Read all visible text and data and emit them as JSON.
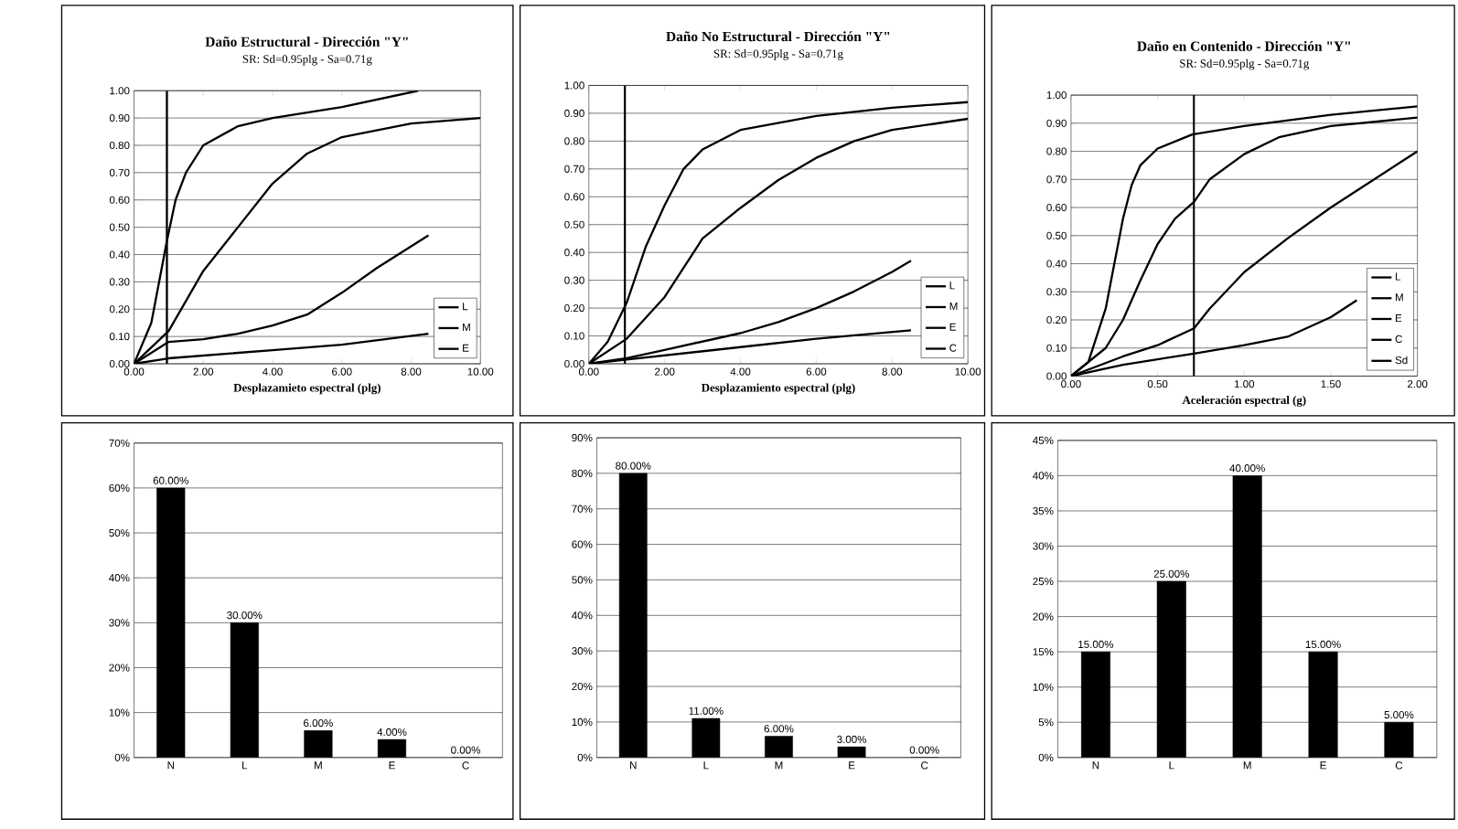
{
  "chart_data": [
    {
      "type": "line",
      "title": "Daño Estructural - Dirección \"Y\"",
      "subtitle": "SR: Sd=0.95plg - Sa=0.71g",
      "xlabel": "Desplazamieto espectral (plg)",
      "xlim": [
        0,
        10
      ],
      "ylim": [
        0,
        1
      ],
      "xticks": [
        {
          "value": 0,
          "label": "0.00"
        },
        {
          "value": 2,
          "label": "2.00"
        },
        {
          "value": 4,
          "label": "4.00"
        },
        {
          "value": 6,
          "label": "6.00"
        },
        {
          "value": 8,
          "label": "8.00"
        },
        {
          "value": 10,
          "label": "10.00"
        }
      ],
      "yticks": [
        {
          "value": 0,
          "label": "0.00"
        },
        {
          "value": 0.1,
          "label": "0.10"
        },
        {
          "value": 0.2,
          "label": "0.20"
        },
        {
          "value": 0.3,
          "label": "0.30"
        },
        {
          "value": 0.4,
          "label": "0.40"
        },
        {
          "value": 0.5,
          "label": "0.50"
        },
        {
          "value": 0.6,
          "label": "0.60"
        },
        {
          "value": 0.7,
          "label": "0.70"
        },
        {
          "value": 0.8,
          "label": "0.80"
        },
        {
          "value": 0.9,
          "label": "0.90"
        },
        {
          "value": 1,
          "label": "1.00"
        }
      ],
      "grid": "y",
      "legend": "bottom right",
      "marker": "none",
      "line_style": "solid",
      "series": [
        {
          "name": "L",
          "color": "#000000",
          "x": [
            0,
            0.5,
            0.95,
            1.2,
            1.5,
            2,
            3,
            4,
            6,
            8.2
          ],
          "values": [
            0,
            0.15,
            0.45,
            0.6,
            0.7,
            0.8,
            0.87,
            0.9,
            0.94,
            1
          ]
        },
        {
          "name": "M",
          "color": "#000000",
          "x": [
            0,
            0.5,
            1,
            2,
            3,
            4,
            5,
            6,
            8,
            10
          ],
          "values": [
            0,
            0.06,
            0.12,
            0.34,
            0.5,
            0.66,
            0.77,
            0.83,
            0.88,
            0.9
          ]
        },
        {
          "name": "E",
          "color": "#000000",
          "x": [
            0,
            1,
            2,
            3,
            4,
            5,
            6,
            7,
            8.5
          ],
          "values": [
            0,
            0.08,
            0.09,
            0.11,
            0.14,
            0.18,
            0.26,
            0.35,
            0.47
          ]
        },
        {
          "color": "#000000",
          "x": [
            0,
            1,
            4,
            6,
            8.5
          ],
          "values": [
            0,
            0.02,
            0.05,
            0.07,
            0.11
          ]
        }
      ],
      "ref_lines": [
        {
          "axis": "x",
          "value": 0.95,
          "color": "#000000"
        }
      ]
    },
    {
      "type": "line",
      "title": "Daño No Estructural - Dirección \"Y\"",
      "subtitle": "SR: Sd=0.95plg - Sa=0.71g",
      "xlabel": "Desplazamiento espectral (plg)",
      "xlim": [
        0,
        10
      ],
      "ylim": [
        0,
        1
      ],
      "xticks": [
        {
          "value": 0,
          "label": "0.00"
        },
        {
          "value": 2,
          "label": "2.00"
        },
        {
          "value": 4,
          "label": "4.00"
        },
        {
          "value": 6,
          "label": "6.00"
        },
        {
          "value": 8,
          "label": "8.00"
        },
        {
          "value": 10,
          "label": "10.00"
        }
      ],
      "yticks": [
        {
          "value": 0,
          "label": "0.00"
        },
        {
          "value": 0.1,
          "label": "0.10"
        },
        {
          "value": 0.2,
          "label": "0.20"
        },
        {
          "value": 0.3,
          "label": "0.30"
        },
        {
          "value": 0.4,
          "label": "0.40"
        },
        {
          "value": 0.5,
          "label": "0.50"
        },
        {
          "value": 0.6,
          "label": "0.60"
        },
        {
          "value": 0.7,
          "label": "0.70"
        },
        {
          "value": 0.8,
          "label": "0.80"
        },
        {
          "value": 0.9,
          "label": "0.90"
        },
        {
          "value": 1,
          "label": "1.00"
        }
      ],
      "grid": "y",
      "legend": "bottom right",
      "marker": "none",
      "line_style": "solid",
      "series": [
        {
          "name": "L",
          "color": "#000000",
          "x": [
            0,
            0.5,
            1,
            1.5,
            2,
            2.5,
            3,
            4,
            6,
            8,
            10
          ],
          "values": [
            0,
            0.08,
            0.22,
            0.42,
            0.57,
            0.7,
            0.77,
            0.84,
            0.89,
            0.92,
            0.94
          ]
        },
        {
          "name": "M",
          "color": "#000000",
          "x": [
            0,
            1,
            2,
            3,
            4,
            5,
            6,
            7,
            8,
            10
          ],
          "values": [
            0,
            0.09,
            0.24,
            0.45,
            0.56,
            0.66,
            0.74,
            0.8,
            0.84,
            0.88
          ]
        },
        {
          "name": "E",
          "color": "#000000",
          "x": [
            0,
            1,
            2,
            3,
            4,
            5,
            6,
            7,
            8,
            8.5
          ],
          "values": [
            0,
            0.02,
            0.05,
            0.08,
            0.11,
            0.15,
            0.2,
            0.26,
            0.33,
            0.37
          ]
        },
        {
          "name": "C",
          "color": "#000000",
          "x": [
            0,
            1,
            4,
            6,
            8.5
          ],
          "values": [
            0,
            0.015,
            0.06,
            0.09,
            0.12
          ]
        }
      ],
      "ref_lines": [
        {
          "axis": "x",
          "value": 0.95,
          "color": "#000000"
        }
      ]
    },
    {
      "type": "line",
      "title": "Daño en Contenido - Dirección \"Y\"",
      "subtitle": "SR: Sd=0.95plg - Sa=0.71g",
      "xlabel": "Aceleración espectral (g)",
      "xlim": [
        0,
        2
      ],
      "ylim": [
        0,
        1
      ],
      "xticks": [
        {
          "value": 0,
          "label": "0.00"
        },
        {
          "value": 0.5,
          "label": "0.50"
        },
        {
          "value": 1,
          "label": "1.00"
        },
        {
          "value": 1.5,
          "label": "1.50"
        },
        {
          "value": 2,
          "label": "2.00"
        }
      ],
      "yticks": [
        {
          "value": 0,
          "label": "0.00"
        },
        {
          "value": 0.1,
          "label": "0.10"
        },
        {
          "value": 0.2,
          "label": "0.20"
        },
        {
          "value": 0.3,
          "label": "0.30"
        },
        {
          "value": 0.4,
          "label": "0.40"
        },
        {
          "value": 0.5,
          "label": "0.50"
        },
        {
          "value": 0.6,
          "label": "0.60"
        },
        {
          "value": 0.7,
          "label": "0.70"
        },
        {
          "value": 0.8,
          "label": "0.80"
        },
        {
          "value": 0.9,
          "label": "0.90"
        },
        {
          "value": 1,
          "label": "1.00"
        }
      ],
      "grid": "y",
      "legend": "bottom right",
      "marker": "none",
      "line_style": "solid",
      "series": [
        {
          "name": "L",
          "color": "#000000",
          "x": [
            0,
            0.1,
            0.2,
            0.25,
            0.3,
            0.35,
            0.4,
            0.5,
            0.7,
            1,
            1.5,
            2
          ],
          "values": [
            0,
            0.05,
            0.24,
            0.4,
            0.56,
            0.68,
            0.75,
            0.81,
            0.86,
            0.89,
            0.93,
            0.96
          ]
        },
        {
          "name": "M",
          "color": "#000000",
          "x": [
            0,
            0.2,
            0.3,
            0.4,
            0.5,
            0.6,
            0.71,
            0.8,
            1,
            1.2,
            1.5,
            2
          ],
          "values": [
            0,
            0.1,
            0.2,
            0.34,
            0.47,
            0.56,
            0.62,
            0.7,
            0.79,
            0.85,
            0.89,
            0.92
          ]
        },
        {
          "name": "E",
          "color": "#000000",
          "x": [
            0,
            0.3,
            0.5,
            0.71,
            0.8,
            1,
            1.25,
            1.5,
            1.75,
            2
          ],
          "values": [
            0,
            0.07,
            0.11,
            0.17,
            0.24,
            0.37,
            0.49,
            0.6,
            0.7,
            0.8
          ]
        },
        {
          "name": "C",
          "color": "#000000",
          "x": [
            0,
            0.3,
            0.5,
            0.71,
            1,
            1.25,
            1.5,
            1.65
          ],
          "values": [
            0,
            0.04,
            0.06,
            0.08,
            0.11,
            0.14,
            0.21,
            0.27
          ]
        },
        {
          "name": "Sd",
          "color": "#000000",
          "x": [
            0.71,
            0.71
          ],
          "values": [
            0,
            1
          ]
        }
      ]
    },
    {
      "type": "bar",
      "categories": [
        "N",
        "L",
        "M",
        "E",
        "C"
      ],
      "values": [
        60,
        30,
        6,
        4,
        0
      ],
      "color": "#000000",
      "value_labels": [
        "60.00%",
        "30.00%",
        "6.00%",
        "4.00%",
        "0.00%"
      ],
      "ylim": [
        0,
        70
      ],
      "yticks": [
        {
          "value": 0,
          "label": "0%"
        },
        {
          "value": 10,
          "label": "10%"
        },
        {
          "value": 20,
          "label": "20%"
        },
        {
          "value": 30,
          "label": "30%"
        },
        {
          "value": 40,
          "label": "40%"
        },
        {
          "value": 50,
          "label": "50%"
        },
        {
          "value": 60,
          "label": "60%"
        },
        {
          "value": 70,
          "label": "70%"
        }
      ],
      "grid": "y"
    },
    {
      "type": "bar",
      "categories": [
        "N",
        "L",
        "M",
        "E",
        "C"
      ],
      "values": [
        80,
        11,
        6,
        3,
        0
      ],
      "color": "#000000",
      "value_labels": [
        "80.00%",
        "11.00%",
        "6.00%",
        "3.00%",
        "0.00%"
      ],
      "ylim": [
        0,
        90
      ],
      "yticks": [
        {
          "value": 0,
          "label": "0%"
        },
        {
          "value": 10,
          "label": "10%"
        },
        {
          "value": 20,
          "label": "20%"
        },
        {
          "value": 30,
          "label": "30%"
        },
        {
          "value": 40,
          "label": "40%"
        },
        {
          "value": 50,
          "label": "50%"
        },
        {
          "value": 60,
          "label": "60%"
        },
        {
          "value": 70,
          "label": "70%"
        },
        {
          "value": 80,
          "label": "80%"
        },
        {
          "value": 90,
          "label": "90%"
        }
      ],
      "grid": "y"
    },
    {
      "type": "bar",
      "categories": [
        "N",
        "L",
        "M",
        "E",
        "C"
      ],
      "values": [
        15,
        25,
        40,
        15,
        5
      ],
      "color": "#000000",
      "value_labels": [
        "15.00%",
        "25.00%",
        "40.00%",
        "15.00%",
        "5.00%"
      ],
      "ylim": [
        0,
        45
      ],
      "yticks": [
        {
          "value": 0,
          "label": "0%"
        },
        {
          "value": 5,
          "label": "5%"
        },
        {
          "value": 10,
          "label": "10%"
        },
        {
          "value": 15,
          "label": "15%"
        },
        {
          "value": 20,
          "label": "20%"
        },
        {
          "value": 25,
          "label": "25%"
        },
        {
          "value": 30,
          "label": "30%"
        },
        {
          "value": 35,
          "label": "35%"
        },
        {
          "value": 40,
          "label": "40%"
        },
        {
          "value": 45,
          "label": "45%"
        }
      ],
      "grid": "y"
    }
  ]
}
